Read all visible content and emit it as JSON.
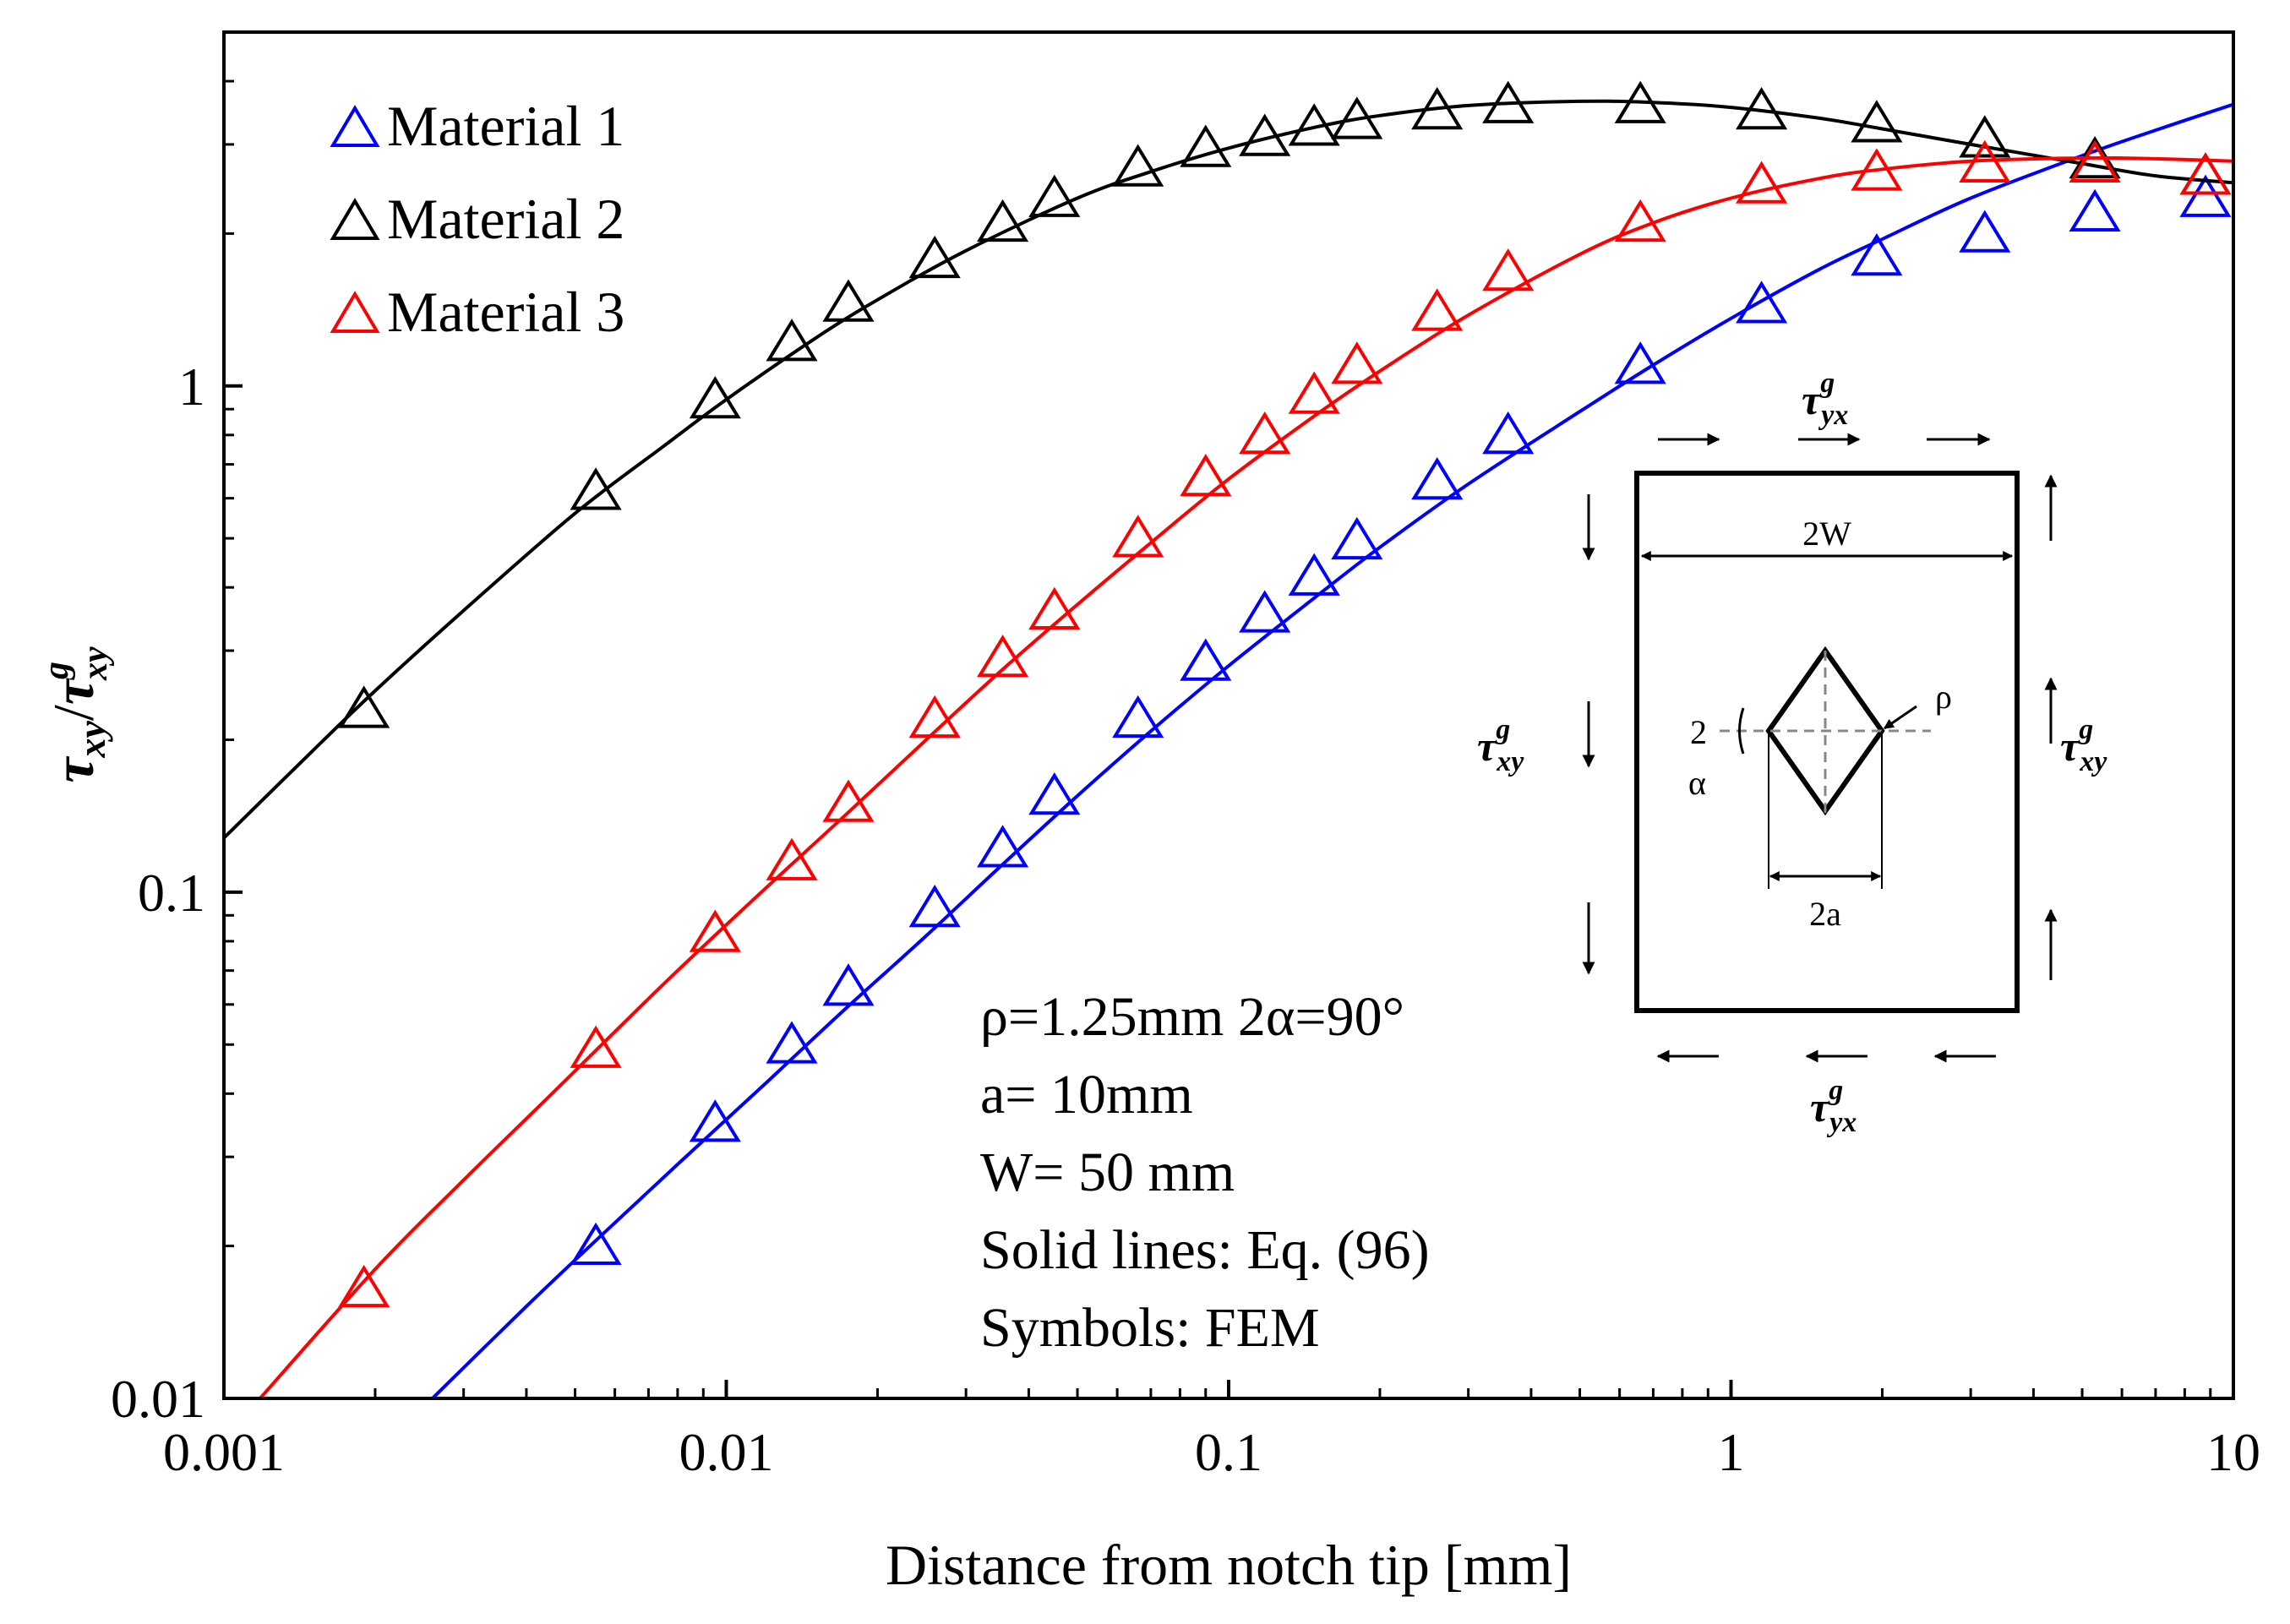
{
  "chart_data": {
    "type": "line+scatter",
    "xscale": "log",
    "yscale": "log",
    "xlabel": "Distance from notch tip [mm]",
    "ylabel": "τxy/τxy^g",
    "ylabel_parts": {
      "num": "τ",
      "num_sub": "xy",
      "den": "τ",
      "den_sup": "g",
      "den_sub": "xy"
    },
    "xlim": [
      0.001,
      10
    ],
    "ylim": [
      0.01,
      5
    ],
    "xticks": [
      {
        "value": 0.001,
        "label": "0.001"
      },
      {
        "value": 0.01,
        "label": "0.01"
      },
      {
        "value": 0.1,
        "label": "0.1"
      },
      {
        "value": 1,
        "label": "1"
      },
      {
        "value": 10,
        "label": "10"
      }
    ],
    "yticks": [
      {
        "value": 0.01,
        "label": "0.01"
      },
      {
        "value": 0.1,
        "label": "0.1"
      },
      {
        "value": 1,
        "label": "1"
      }
    ],
    "legend_position": "top-left",
    "series": [
      {
        "name": "Material 1",
        "color": "#0000ff",
        "line_x": [
          0.0026,
          0.004,
          0.0055,
          0.008,
          0.012,
          0.017,
          0.025,
          0.035,
          0.05,
          0.07,
          0.1,
          0.15,
          0.2,
          0.3,
          0.5,
          0.7,
          1.0,
          1.5,
          2.0,
          3.0,
          5.0,
          7.0,
          10.0
        ],
        "line_y": [
          0.01,
          0.0152,
          0.0205,
          0.029,
          0.042,
          0.058,
          0.082,
          0.112,
          0.155,
          0.208,
          0.28,
          0.385,
          0.48,
          0.64,
          0.89,
          1.1,
          1.36,
          1.7,
          1.95,
          2.35,
          2.85,
          3.2,
          3.6
        ],
        "points_x": [
          0.0055,
          0.0095,
          0.0135,
          0.0175,
          0.026,
          0.0355,
          0.045,
          0.066,
          0.09,
          0.118,
          0.148,
          0.18,
          0.26,
          0.36,
          0.66,
          1.15,
          1.95,
          3.2,
          5.3,
          8.8
        ],
        "points_y": [
          0.02,
          0.035,
          0.05,
          0.065,
          0.093,
          0.122,
          0.155,
          0.22,
          0.285,
          0.355,
          0.42,
          0.495,
          0.65,
          0.8,
          1.1,
          1.45,
          1.8,
          2.0,
          2.2,
          2.35
        ]
      },
      {
        "name": "Material 2",
        "color": "#000000",
        "line_x": [
          0.001,
          0.0015,
          0.002,
          0.003,
          0.005,
          0.0075,
          0.01,
          0.015,
          0.02,
          0.03,
          0.05,
          0.07,
          0.1,
          0.15,
          0.2,
          0.3,
          0.5,
          0.7,
          1.0,
          1.5,
          2.0,
          3.0,
          5.0,
          7.0,
          10.0
        ],
        "line_y": [
          0.128,
          0.19,
          0.25,
          0.36,
          0.56,
          0.76,
          0.94,
          1.24,
          1.48,
          1.85,
          2.35,
          2.65,
          2.95,
          3.25,
          3.42,
          3.58,
          3.65,
          3.63,
          3.55,
          3.38,
          3.22,
          3.0,
          2.75,
          2.6,
          2.52
        ],
        "points_x": [
          0.0019,
          0.0055,
          0.0095,
          0.0135,
          0.0175,
          0.026,
          0.0355,
          0.045,
          0.066,
          0.09,
          0.118,
          0.148,
          0.18,
          0.26,
          0.36,
          0.66,
          1.15,
          1.95,
          3.2,
          5.3,
          8.8
        ],
        "points_y": [
          0.23,
          0.62,
          0.94,
          1.22,
          1.46,
          1.78,
          2.1,
          2.35,
          2.7,
          2.95,
          3.1,
          3.25,
          3.35,
          3.5,
          3.6,
          3.6,
          3.5,
          3.3,
          3.08,
          2.8,
          2.6
        ]
      },
      {
        "name": "Material 3",
        "color": "#ff0000",
        "line_x": [
          0.00118,
          0.002,
          0.003,
          0.0045,
          0.006,
          0.008,
          0.012,
          0.017,
          0.025,
          0.035,
          0.05,
          0.07,
          0.1,
          0.15,
          0.2,
          0.3,
          0.5,
          0.7,
          1.0,
          1.5,
          2.0,
          3.0,
          5.0,
          7.0,
          10.0
        ],
        "line_y": [
          0.01,
          0.018,
          0.027,
          0.04,
          0.053,
          0.07,
          0.102,
          0.14,
          0.2,
          0.272,
          0.37,
          0.49,
          0.655,
          0.88,
          1.07,
          1.38,
          1.82,
          2.1,
          2.35,
          2.57,
          2.68,
          2.78,
          2.82,
          2.81,
          2.78
        ],
        "points_x": [
          0.0019,
          0.0055,
          0.0095,
          0.0135,
          0.0175,
          0.026,
          0.0355,
          0.045,
          0.066,
          0.09,
          0.118,
          0.148,
          0.18,
          0.26,
          0.36,
          0.66,
          1.15,
          1.95,
          3.2,
          5.3,
          8.8
        ],
        "points_y": [
          0.0165,
          0.049,
          0.083,
          0.115,
          0.15,
          0.22,
          0.29,
          0.36,
          0.5,
          0.66,
          0.8,
          0.96,
          1.1,
          1.4,
          1.68,
          2.1,
          2.5,
          2.65,
          2.75,
          2.75,
          2.6
        ]
      }
    ],
    "annotations": [
      "ρ=1.25mm 2α=90°",
      "a= 10mm",
      "W= 50 mm",
      "Solid lines: Eq. (96)",
      "Symbols: FEM"
    ],
    "inset": {
      "width_label": "2W",
      "notch_label": "2a",
      "rho_label": "ρ",
      "alpha_label_top": "2",
      "alpha_label_bottom": "α",
      "shear_label": {
        "base": "τ",
        "sup": "g",
        "sub": "xy"
      },
      "shear_label_yx": {
        "base": "τ",
        "sup": "g",
        "sub": "yx"
      }
    }
  }
}
